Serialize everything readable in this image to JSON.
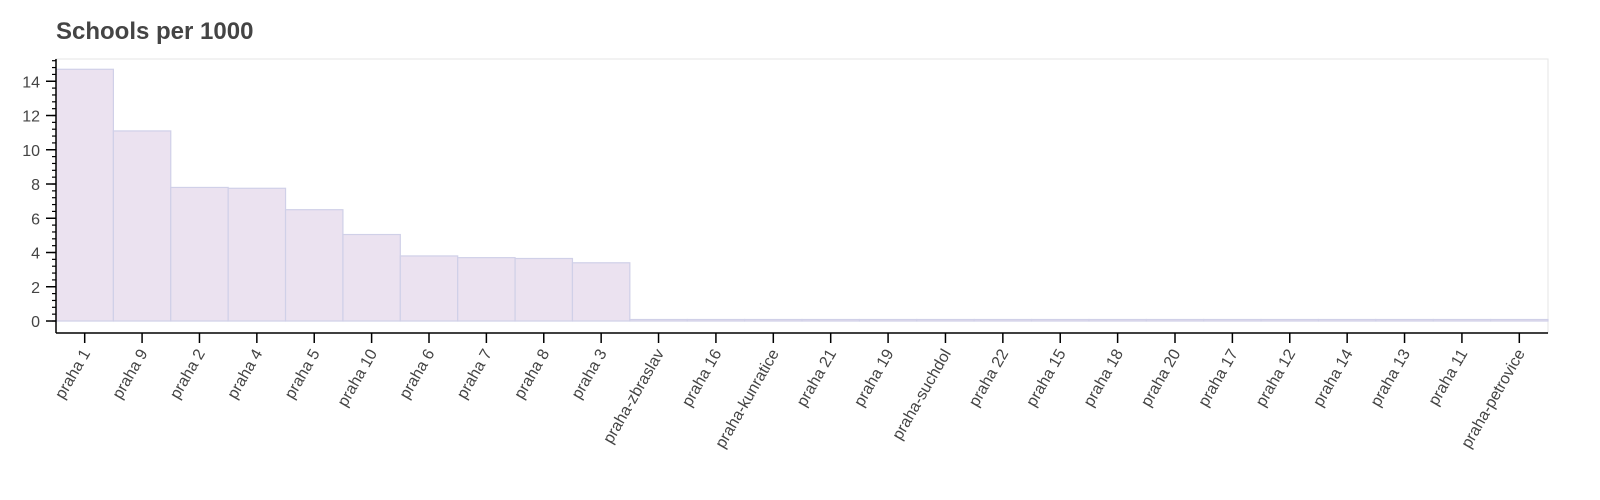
{
  "chart_data": {
    "type": "bar",
    "title": "Schools per 1000",
    "xlabel": "",
    "ylabel": "",
    "categories": [
      "praha 1",
      "praha 9",
      "praha 2",
      "praha 4",
      "praha 5",
      "praha 10",
      "praha 6",
      "praha 7",
      "praha 8",
      "praha 3",
      "praha-zbraslav",
      "praha 16",
      "praha-kunratice",
      "praha 21",
      "praha 19",
      "praha-suchdol",
      "praha 22",
      "praha 15",
      "praha 18",
      "praha 20",
      "praha 17",
      "praha 12",
      "praha 14",
      "praha 13",
      "praha 11",
      "praha-petrovice"
    ],
    "values": [
      14.7,
      11.1,
      7.8,
      7.75,
      6.5,
      5.05,
      3.8,
      3.7,
      3.65,
      3.4,
      0,
      0,
      0,
      0,
      0,
      0,
      0,
      0,
      0,
      0,
      0,
      0,
      0,
      0,
      0,
      0
    ],
    "ylim": [
      -0.7,
      15.3
    ],
    "yticks": [
      0,
      2,
      4,
      6,
      8,
      10,
      12,
      14
    ],
    "yticks_minor_step": 0.4,
    "grid": false,
    "colors": {
      "bar_fill": "#ebe2f0",
      "bar_stroke": "#d0d0e8",
      "axis": "#000000",
      "text": "#444444",
      "frame": "#e5e5e5"
    }
  }
}
